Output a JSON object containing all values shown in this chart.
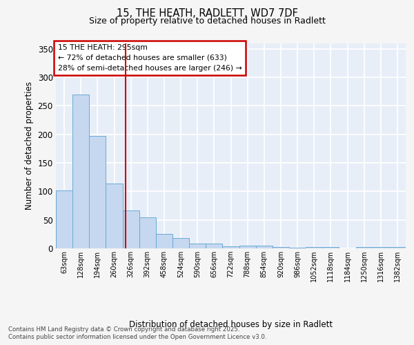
{
  "title_line1": "15, THE HEATH, RADLETT, WD7 7DF",
  "title_line2": "Size of property relative to detached houses in Radlett",
  "xlabel": "Distribution of detached houses by size in Radlett",
  "ylabel": "Number of detached properties",
  "bar_labels": [
    "63sqm",
    "128sqm",
    "194sqm",
    "260sqm",
    "326sqm",
    "392sqm",
    "458sqm",
    "524sqm",
    "590sqm",
    "656sqm",
    "722sqm",
    "788sqm",
    "854sqm",
    "920sqm",
    "986sqm",
    "1052sqm",
    "1118sqm",
    "1184sqm",
    "1250sqm",
    "1316sqm",
    "1382sqm"
  ],
  "bar_values": [
    102,
    270,
    197,
    114,
    67,
    54,
    26,
    18,
    9,
    8,
    4,
    5,
    5,
    3,
    1,
    3,
    2,
    0,
    3,
    2,
    2
  ],
  "bar_color": "#c5d8f0",
  "bar_edge_color": "#6aaad4",
  "background_color": "#e8eef8",
  "grid_color": "#ffffff",
  "red_line_x": 3.68,
  "annotation_text": "15 THE HEATH: 295sqm\n← 72% of detached houses are smaller (633)\n28% of semi-detached houses are larger (246) →",
  "annotation_box_color": "#ffffff",
  "annotation_box_edge": "#cc0000",
  "footnote_line1": "Contains HM Land Registry data © Crown copyright and database right 2025.",
  "footnote_line2": "Contains public sector information licensed under the Open Government Licence v3.0.",
  "fig_background": "#f5f5f5",
  "ylim": [
    0,
    360
  ],
  "yticks": [
    0,
    50,
    100,
    150,
    200,
    250,
    300,
    350
  ]
}
